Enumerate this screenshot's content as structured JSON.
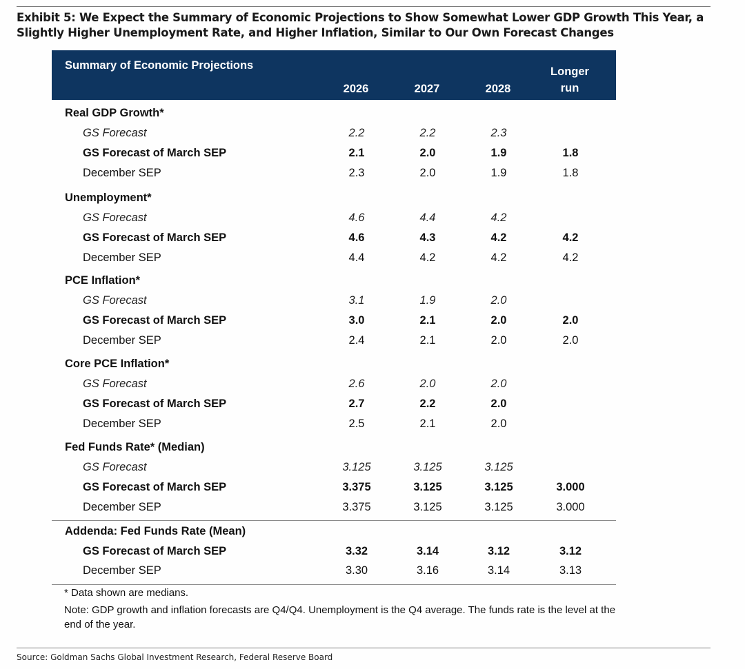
{
  "exhibit": {
    "title": "Exhibit 5: We Expect the Summary of Economic Projections to Show Somewhat Lower GDP Growth This Year, a Slightly Higher Unemployment Rate, and Higher Inflation, Similar to Our Own Forecast Changes"
  },
  "header": {
    "title": "Summary of Economic Projections",
    "years": [
      "2026",
      "2027",
      "2028"
    ],
    "longer_run_1": "Longer",
    "longer_run_2": "run"
  },
  "sections": [
    {
      "title": "Real GDP Growth*",
      "rows": [
        {
          "label": "GS Forecast",
          "values": [
            "2.2",
            "2.2",
            "2.3",
            ""
          ]
        },
        {
          "label": "GS Forecast of March SEP",
          "values": [
            "2.1",
            "2.0",
            "1.9",
            "1.8"
          ]
        },
        {
          "label": "December SEP",
          "values": [
            "2.3",
            "2.0",
            "1.9",
            "1.8"
          ]
        }
      ]
    },
    {
      "title": "Unemployment*",
      "rows": [
        {
          "label": "GS Forecast",
          "values": [
            "4.6",
            "4.4",
            "4.2",
            ""
          ]
        },
        {
          "label": "GS Forecast of March SEP",
          "values": [
            "4.6",
            "4.3",
            "4.2",
            "4.2"
          ]
        },
        {
          "label": "December SEP",
          "values": [
            "4.4",
            "4.2",
            "4.2",
            "4.2"
          ]
        }
      ]
    },
    {
      "title": "PCE Inflation*",
      "rows": [
        {
          "label": "GS Forecast",
          "values": [
            "3.1",
            "1.9",
            "2.0",
            ""
          ]
        },
        {
          "label": "GS Forecast of March SEP",
          "values": [
            "3.0",
            "2.1",
            "2.0",
            "2.0"
          ]
        },
        {
          "label": "December SEP",
          "values": [
            "2.4",
            "2.1",
            "2.0",
            "2.0"
          ]
        }
      ]
    },
    {
      "title": "Core PCE Inflation*",
      "rows": [
        {
          "label": "GS Forecast",
          "values": [
            "2.6",
            "2.0",
            "2.0",
            ""
          ]
        },
        {
          "label": "GS Forecast of March SEP",
          "values": [
            "2.7",
            "2.2",
            "2.0",
            ""
          ]
        },
        {
          "label": "December SEP",
          "values": [
            "2.5",
            "2.1",
            "2.0",
            ""
          ]
        }
      ]
    },
    {
      "title": "Fed Funds Rate* (Median)",
      "rows": [
        {
          "label": "GS Forecast",
          "values": [
            "3.125",
            "3.125",
            "3.125",
            ""
          ]
        },
        {
          "label": "GS Forecast of March SEP",
          "values": [
            "3.375",
            "3.125",
            "3.125",
            "3.000"
          ]
        },
        {
          "label": "December SEP",
          "values": [
            "3.375",
            "3.125",
            "3.125",
            "3.000"
          ]
        }
      ]
    }
  ],
  "addenda": {
    "title": "Addenda: Fed Funds Rate (Mean)",
    "rows": [
      {
        "label": "GS Forecast of March SEP",
        "values": [
          "3.32",
          "3.14",
          "3.12",
          "3.12"
        ]
      },
      {
        "label": "December SEP",
        "values": [
          "3.30",
          "3.16",
          "3.14",
          "3.13"
        ]
      }
    ]
  },
  "notes": {
    "footnote": "* Data shown are medians.",
    "note": "Note: GDP growth and inflation forecasts are Q4/Q4.  Unemployment is the Q4 average.  The funds rate is the level at the end of the year."
  },
  "source": "Source: Goldman Sachs Global Investment Research, Federal Reserve Board"
}
